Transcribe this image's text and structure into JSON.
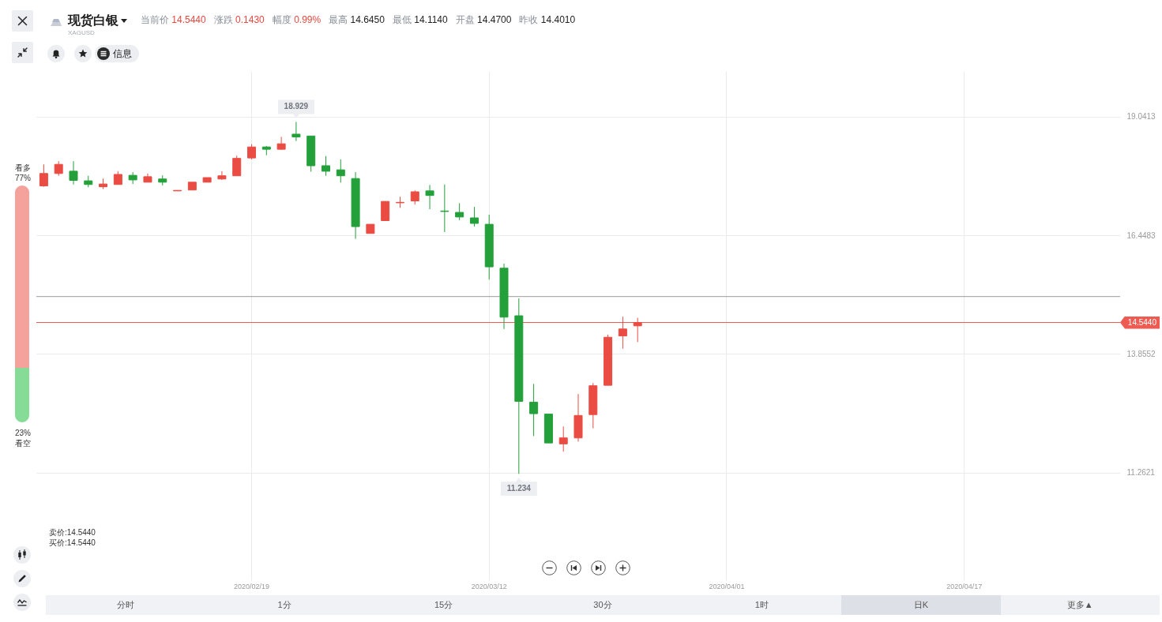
{
  "chart_data": [
    {
      "type": "candlestick",
      "title": "现货白银",
      "subtitle": "XAGUSD",
      "annotations": [
        "当前价 14.5440",
        "涨跌 0.1430",
        "幅度 0.99%",
        "最高 14.6450",
        "最低 14.1140",
        "开盘 14.4700",
        "昨收 14.4010",
        "信息",
        "卖价:14.5440",
        "买价:14.5440",
        "分时",
        "1分",
        "15分",
        "30分",
        "1时",
        "日K",
        "更多▲",
        {
          "text": "18.929",
          "y": 18.929
        },
        {
          "text": "11.234",
          "y": 11.234
        }
      ],
      "categories": [
        null,
        null,
        null,
        null,
        null,
        null,
        null,
        null,
        null,
        null,
        null,
        null,
        null,
        null,
        "2020/02/19",
        null,
        null,
        null,
        null,
        null,
        null,
        null,
        null,
        null,
        null,
        null,
        null,
        null,
        null,
        null,
        "2020/03/12",
        null,
        null,
        null,
        null,
        null,
        null,
        null,
        null,
        null,
        null,
        null,
        null,
        null,
        null,
        null,
        "2020/04/01",
        null,
        null,
        null,
        null,
        null,
        null,
        null,
        null,
        null,
        null,
        null,
        null,
        null,
        null,
        null,
        "2020/04/17",
        null,
        null,
        null,
        null,
        null,
        null,
        null,
        null,
        null,
        null
      ],
      "ohlc": [
        [
          17.53,
          18.0,
          17.51,
          17.8
        ],
        [
          17.8,
          18.07,
          17.75,
          18.0
        ],
        [
          17.85,
          18.07,
          17.56,
          17.65
        ],
        [
          17.64,
          17.75,
          17.5,
          17.56
        ],
        [
          17.51,
          17.69,
          17.46,
          17.57
        ],
        [
          17.56,
          17.85,
          17.56,
          17.78
        ],
        [
          17.76,
          17.83,
          17.57,
          17.66
        ],
        [
          17.61,
          17.8,
          17.61,
          17.73
        ],
        [
          17.68,
          17.76,
          17.54,
          17.61
        ],
        [
          17.42,
          17.43,
          17.42,
          17.43
        ],
        [
          17.44,
          17.61,
          17.44,
          17.61
        ],
        [
          17.61,
          17.71,
          17.61,
          17.71
        ],
        [
          17.68,
          17.85,
          17.66,
          17.75
        ],
        [
          17.75,
          18.19,
          17.75,
          18.13
        ],
        [
          18.14,
          18.44,
          18.11,
          18.38
        ],
        [
          18.38,
          18.4,
          18.2,
          18.33
        ],
        [
          18.33,
          18.6,
          18.32,
          18.45
        ],
        [
          18.66,
          18.929,
          18.51,
          18.6
        ],
        [
          18.62,
          18.62,
          17.84,
          17.97
        ],
        [
          17.97,
          18.18,
          17.75,
          17.85
        ],
        [
          17.88,
          18.11,
          17.6,
          17.75
        ],
        [
          17.69,
          17.83,
          16.37,
          16.64
        ],
        [
          16.49,
          16.69,
          16.49,
          16.69
        ],
        [
          16.77,
          17.19,
          16.77,
          17.19
        ],
        [
          17.16,
          17.29,
          17.05,
          17.17
        ],
        [
          17.2,
          17.43,
          17.12,
          17.4
        ],
        [
          17.42,
          17.55,
          17.02,
          17.32
        ],
        [
          16.98,
          17.56,
          16.52,
          16.97
        ],
        [
          16.95,
          17.15,
          16.78,
          16.85
        ],
        [
          16.83,
          17.07,
          16.64,
          16.71
        ],
        [
          16.69,
          16.9,
          15.48,
          15.76
        ],
        [
          15.73,
          15.83,
          14.4,
          14.66
        ],
        [
          14.69,
          15.07,
          11.234,
          12.82
        ],
        [
          12.8,
          13.2,
          12.06,
          12.55
        ],
        [
          12.54,
          12.54,
          11.91,
          11.91
        ],
        [
          11.89,
          12.27,
          11.72,
          12.02
        ],
        [
          12.02,
          12.98,
          11.94,
          12.51
        ],
        [
          12.53,
          13.22,
          12.23,
          13.16
        ],
        [
          13.17,
          14.28,
          13.17,
          14.22
        ],
        [
          14.25,
          14.67,
          13.97,
          14.401
        ],
        [
          14.47,
          14.645,
          14.114,
          14.544
        ],
        null,
        null,
        null,
        null,
        null,
        null,
        null,
        null,
        null,
        null,
        null,
        null,
        null,
        null,
        null,
        null,
        null,
        null,
        null,
        null,
        null,
        null,
        null,
        null,
        null,
        null,
        null,
        null,
        null,
        null,
        null,
        null
      ],
      "colors": [
        "#ea4c43",
        "#ea4c43",
        "#23a03a",
        "#23a03a",
        "#ea4c43",
        "#ea4c43",
        "#23a03a",
        "#ea4c43",
        "#23a03a",
        "#ea4c43",
        "#ea4c43",
        "#ea4c43",
        "#ea4c43",
        "#ea4c43",
        "#ea4c43",
        "#23a03a",
        "#ea4c43",
        "#23a03a",
        "#23a03a",
        "#23a03a",
        "#23a03a",
        "#23a03a",
        "#ea4c43",
        "#ea4c43",
        "#ea4c43",
        "#ea4c43",
        "#23a03a",
        "#23a03a",
        "#23a03a",
        "#23a03a",
        "#23a03a",
        "#23a03a",
        "#23a03a",
        "#23a03a",
        "#23a03a",
        "#ea4c43",
        "#ea4c43",
        "#ea4c43",
        "#ea4c43",
        "#ea4c43",
        "#ea4c43",
        null,
        null,
        null,
        null,
        null,
        null,
        null,
        null,
        null,
        null,
        null,
        null,
        null,
        null,
        null,
        null,
        null,
        null,
        null,
        null,
        null,
        null,
        null,
        null,
        null,
        null,
        null,
        null,
        null,
        null,
        null,
        null
      ],
      "ylim": [
        8.91,
        20.04
      ],
      "yticks": [
        19.0413,
        16.4483,
        13.8552,
        11.2621
      ],
      "grid": true,
      "ref_lines": [
        {
          "axis": "y",
          "value": 15.11,
          "color": "#9a9a9a"
        },
        {
          "axis": "y",
          "value": 14.544,
          "label": "14.5440",
          "color": "#ee5b52"
        }
      ]
    },
    {
      "type": "bar",
      "stacked": true,
      "categories": [
        null
      ],
      "series": [
        {
          "name": "看空",
          "color": "#86dc96",
          "values": [
            23
          ],
          "value_labels": [
            "23%"
          ]
        },
        {
          "name": "看多",
          "color": "#f4a29b",
          "values": [
            77
          ],
          "value_labels": [
            "77%"
          ]
        }
      ]
    }
  ]
}
